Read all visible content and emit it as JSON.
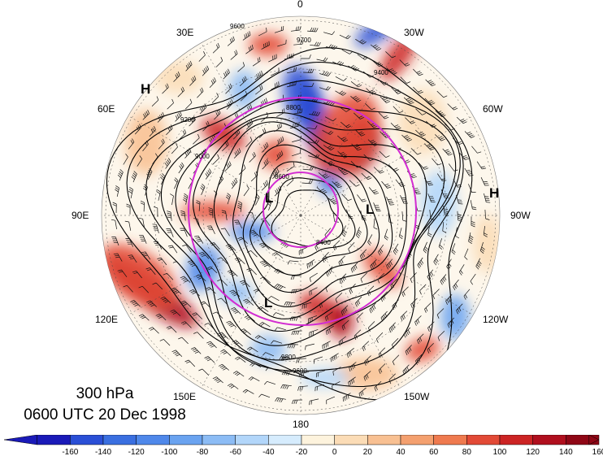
{
  "title": {
    "level": "300 hPa",
    "time": "0600 UTC 20 Dec 1998"
  },
  "longitude_labels": [
    "0",
    "30W",
    "60W",
    "90W",
    "120W",
    "150W",
    "180",
    "150E",
    "120E",
    "90E",
    "60E",
    "30E"
  ],
  "pressure_systems": [
    {
      "type": "H",
      "where": "upper-left edge near 60E"
    },
    {
      "type": "H",
      "where": "right edge near 90W"
    },
    {
      "type": "L",
      "where": "near pole, 90E side"
    },
    {
      "type": "L",
      "where": "near pole, 90W side"
    },
    {
      "type": "L",
      "where": "lower-left toward 150E"
    }
  ],
  "contour_labels": [
    "9600",
    "9700",
    "9400",
    "9200",
    "9000",
    "8800",
    "8600",
    "8400",
    "9600",
    "9800"
  ],
  "colorbar": {
    "ticks": [
      "-160",
      "-140",
      "-120",
      "-100",
      "-80",
      "-60",
      "-40",
      "-20",
      "0",
      "20",
      "40",
      "60",
      "80",
      "100",
      "120",
      "140",
      "160"
    ],
    "colors": [
      "#1a1ab8",
      "#2a4fd6",
      "#3a6fe0",
      "#4f88ea",
      "#6aa3f0",
      "#8cbcf5",
      "#b2d6fa",
      "#d6ecfd",
      "#fdf3dd",
      "#fbdcb6",
      "#f8c092",
      "#f4a06f",
      "#ef7a4f",
      "#e24a36",
      "#cc2424",
      "#b00f1e",
      "#8f0716"
    ]
  },
  "colors": {
    "circle": "#d22cd2",
    "contour": "#000000",
    "border": "#555555"
  }
}
